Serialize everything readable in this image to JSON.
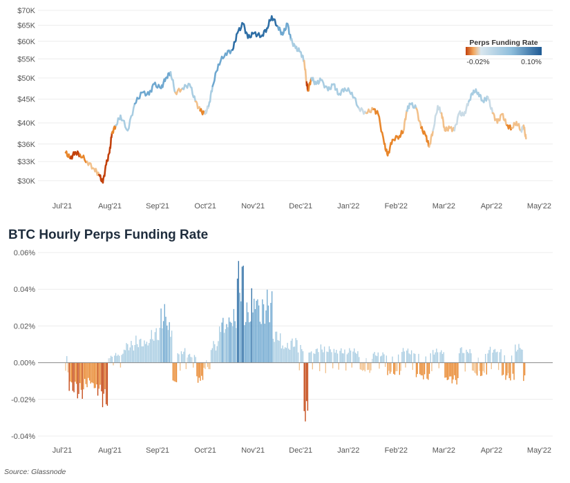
{
  "colors": {
    "neg_strong": "#c2410c",
    "neg_mid": "#e8862b",
    "neg_light": "#f2c08a",
    "neutral": "#c9dbe6",
    "pos_light": "#a9cde2",
    "pos_mid": "#6fa8d0",
    "pos_strong": "#2f6fa6",
    "grid": "#ececec",
    "zero_line": "#8a8a8a"
  },
  "source": "Source: Glassnode",
  "chart_data": [
    {
      "type": "line",
      "title": "",
      "xlabel": "",
      "ylabel": "",
      "y_scale": "log",
      "grid": true,
      "legend_placement": "top-right",
      "legend": {
        "title": "Perps Funding Rate",
        "min_label": "-0.02%",
        "max_label": "0.10%"
      },
      "x_ticks": [
        "Jul'21",
        "Aug'21",
        "Sep'21",
        "Oct'21",
        "Nov'21",
        "Dec'21",
        "Jan'22",
        "Feb'22",
        "Mar'22",
        "Apr'22",
        "May'22"
      ],
      "y_ticks": [
        "$30K",
        "$33K",
        "$36K",
        "$40K",
        "$45K",
        "$50K",
        "$55K",
        "$60K",
        "$65K",
        "$70K"
      ],
      "y_tick_values": [
        30000,
        33000,
        36000,
        40000,
        45000,
        50000,
        55000,
        60000,
        65000,
        70000
      ],
      "ylim": [
        28000,
        70000
      ],
      "xlim": [
        0,
        10.5
      ],
      "series": [
        {
          "color_by": "funding_rate",
          "points": [
            {
              "x": 0.0,
              "y": 34500,
              "rate": -0.005
            },
            {
              "x": 0.1,
              "y": 33500,
              "rate": -0.015
            },
            {
              "x": 0.2,
              "y": 34600,
              "rate": -0.018
            },
            {
              "x": 0.3,
              "y": 34200,
              "rate": -0.012
            },
            {
              "x": 0.45,
              "y": 33000,
              "rate": -0.008
            },
            {
              "x": 0.6,
              "y": 31800,
              "rate": 0.003
            },
            {
              "x": 0.7,
              "y": 30900,
              "rate": -0.01
            },
            {
              "x": 0.78,
              "y": 29700,
              "rate": -0.02
            },
            {
              "x": 0.85,
              "y": 32500,
              "rate": -0.012
            },
            {
              "x": 0.92,
              "y": 34500,
              "rate": -0.02
            },
            {
              "x": 0.97,
              "y": 38000,
              "rate": -0.02
            },
            {
              "x": 1.05,
              "y": 39500,
              "rate": 0.005
            },
            {
              "x": 1.15,
              "y": 41500,
              "rate": 0.01
            },
            {
              "x": 1.3,
              "y": 38500,
              "rate": 0.015
            },
            {
              "x": 1.45,
              "y": 44000,
              "rate": 0.02
            },
            {
              "x": 1.6,
              "y": 46500,
              "rate": 0.02
            },
            {
              "x": 1.75,
              "y": 46000,
              "rate": 0.025
            },
            {
              "x": 1.85,
              "y": 48500,
              "rate": 0.028
            },
            {
              "x": 2.0,
              "y": 47500,
              "rate": 0.03
            },
            {
              "x": 2.1,
              "y": 50000,
              "rate": 0.035
            },
            {
              "x": 2.2,
              "y": 51500,
              "rate": 0.04
            },
            {
              "x": 2.3,
              "y": 46500,
              "rate": -0.008
            },
            {
              "x": 2.45,
              "y": 47500,
              "rate": 0.005
            },
            {
              "x": 2.6,
              "y": 48500,
              "rate": 0.01
            },
            {
              "x": 2.72,
              "y": 44500,
              "rate": 0.005
            },
            {
              "x": 2.82,
              "y": 42500,
              "rate": -0.012
            },
            {
              "x": 2.92,
              "y": 41800,
              "rate": -0.004
            },
            {
              "x": 3.0,
              "y": 43500,
              "rate": 0.005
            },
            {
              "x": 3.08,
              "y": 48000,
              "rate": 0.02
            },
            {
              "x": 3.2,
              "y": 53500,
              "rate": 0.03
            },
            {
              "x": 3.35,
              "y": 56500,
              "rate": 0.035
            },
            {
              "x": 3.5,
              "y": 57500,
              "rate": 0.04
            },
            {
              "x": 3.6,
              "y": 62500,
              "rate": 0.05
            },
            {
              "x": 3.72,
              "y": 65500,
              "rate": 0.055
            },
            {
              "x": 3.82,
              "y": 61000,
              "rate": 0.04
            },
            {
              "x": 3.95,
              "y": 62500,
              "rate": 0.045
            },
            {
              "x": 4.1,
              "y": 61500,
              "rate": 0.04
            },
            {
              "x": 4.22,
              "y": 64000,
              "rate": 0.045
            },
            {
              "x": 4.32,
              "y": 68000,
              "rate": 0.05
            },
            {
              "x": 4.45,
              "y": 64500,
              "rate": 0.035
            },
            {
              "x": 4.55,
              "y": 62000,
              "rate": 0.025
            },
            {
              "x": 4.65,
              "y": 65500,
              "rate": 0.03
            },
            {
              "x": 4.72,
              "y": 60500,
              "rate": 0.015
            },
            {
              "x": 4.82,
              "y": 58000,
              "rate": 0.01
            },
            {
              "x": 4.92,
              "y": 57000,
              "rate": 0.005
            },
            {
              "x": 5.0,
              "y": 54500,
              "rate": 0.01
            },
            {
              "x": 5.05,
              "y": 49000,
              "rate": -0.02
            },
            {
              "x": 5.08,
              "y": 47000,
              "rate": -0.02
            },
            {
              "x": 5.15,
              "y": 50000,
              "rate": 0.005
            },
            {
              "x": 5.25,
              "y": 48500,
              "rate": 0.008
            },
            {
              "x": 5.35,
              "y": 49500,
              "rate": 0.006
            },
            {
              "x": 5.5,
              "y": 47000,
              "rate": 0.008
            },
            {
              "x": 5.62,
              "y": 48500,
              "rate": 0.01
            },
            {
              "x": 5.72,
              "y": 46000,
              "rate": 0.008
            },
            {
              "x": 5.85,
              "y": 47500,
              "rate": 0.006
            },
            {
              "x": 6.0,
              "y": 46500,
              "rate": 0.005
            },
            {
              "x": 6.15,
              "y": 43000,
              "rate": 0.005
            },
            {
              "x": 6.3,
              "y": 42000,
              "rate": -0.003
            },
            {
              "x": 6.45,
              "y": 42800,
              "rate": -0.006
            },
            {
              "x": 6.55,
              "y": 41800,
              "rate": -0.01
            },
            {
              "x": 6.68,
              "y": 36000,
              "rate": -0.008
            },
            {
              "x": 6.75,
              "y": 34000,
              "rate": -0.004
            },
            {
              "x": 6.85,
              "y": 36800,
              "rate": -0.008
            },
            {
              "x": 7.0,
              "y": 37500,
              "rate": -0.006
            },
            {
              "x": 7.08,
              "y": 38500,
              "rate": -0.01
            },
            {
              "x": 7.15,
              "y": 42500,
              "rate": 0.004
            },
            {
              "x": 7.22,
              "y": 44000,
              "rate": 0.005
            },
            {
              "x": 7.35,
              "y": 43000,
              "rate": 0.003
            },
            {
              "x": 7.45,
              "y": 39000,
              "rate": -0.008
            },
            {
              "x": 7.55,
              "y": 37500,
              "rate": -0.01
            },
            {
              "x": 7.62,
              "y": 35500,
              "rate": -0.006
            },
            {
              "x": 7.7,
              "y": 38500,
              "rate": -0.004
            },
            {
              "x": 7.8,
              "y": 43500,
              "rate": 0.003
            },
            {
              "x": 7.88,
              "y": 42000,
              "rate": -0.002
            },
            {
              "x": 7.95,
              "y": 38500,
              "rate": -0.006
            },
            {
              "x": 8.05,
              "y": 39000,
              "rate": -0.004
            },
            {
              "x": 8.15,
              "y": 38500,
              "rate": -0.006
            },
            {
              "x": 8.25,
              "y": 42000,
              "rate": 0.004
            },
            {
              "x": 8.35,
              "y": 41500,
              "rate": -0.003
            },
            {
              "x": 8.45,
              "y": 44500,
              "rate": 0.005
            },
            {
              "x": 8.55,
              "y": 47000,
              "rate": 0.008
            },
            {
              "x": 8.65,
              "y": 46500,
              "rate": 0.006
            },
            {
              "x": 8.75,
              "y": 44500,
              "rate": 0.004
            },
            {
              "x": 8.85,
              "y": 45500,
              "rate": 0.004
            },
            {
              "x": 8.95,
              "y": 42000,
              "rate": -0.003
            },
            {
              "x": 9.05,
              "y": 40000,
              "rate": -0.004
            },
            {
              "x": 9.15,
              "y": 41800,
              "rate": -0.003
            },
            {
              "x": 9.25,
              "y": 39500,
              "rate": -0.008
            },
            {
              "x": 9.35,
              "y": 39000,
              "rate": -0.006
            },
            {
              "x": 9.45,
              "y": 40200,
              "rate": -0.004
            },
            {
              "x": 9.55,
              "y": 38500,
              "rate": -0.006
            },
            {
              "x": 9.6,
              "y": 39500,
              "rate": 0.005
            },
            {
              "x": 9.65,
              "y": 37000,
              "rate": -0.01
            }
          ]
        }
      ]
    },
    {
      "type": "bar",
      "title": "BTC Hourly Perps Funding Rate",
      "xlabel": "",
      "ylabel": "",
      "grid": true,
      "x_ticks": [
        "Jul'21",
        "Aug'21",
        "Sep'21",
        "Oct'21",
        "Nov'21",
        "Dec'21",
        "Jan'22",
        "Feb'22",
        "Mar'22",
        "Apr'22",
        "May'22"
      ],
      "y_ticks": [
        "-0.04%",
        "-0.02%",
        "0.00%",
        "0.02%",
        "0.04%",
        "0.06%"
      ],
      "y_tick_values": [
        -0.04,
        -0.02,
        0.0,
        0.02,
        0.04,
        0.06
      ],
      "ylim": [
        -0.04,
        0.06
      ],
      "xlim": [
        0,
        10.5
      ],
      "unit": "%",
      "series": [
        {
          "name": "",
          "profile": [
            {
              "x": 0.0,
              "rate": -0.008
            },
            {
              "x": 0.15,
              "rate": -0.018
            },
            {
              "x": 0.3,
              "rate": -0.02
            },
            {
              "x": 0.5,
              "rate": -0.015
            },
            {
              "x": 0.7,
              "rate": -0.02
            },
            {
              "x": 0.85,
              "rate": -0.025
            },
            {
              "x": 0.95,
              "rate": 0.004
            },
            {
              "x": 1.1,
              "rate": 0.006
            },
            {
              "x": 1.3,
              "rate": 0.012
            },
            {
              "x": 1.6,
              "rate": 0.015
            },
            {
              "x": 1.9,
              "rate": 0.02
            },
            {
              "x": 2.05,
              "rate": 0.033
            },
            {
              "x": 2.2,
              "rate": 0.025
            },
            {
              "x": 2.28,
              "rate": -0.014
            },
            {
              "x": 2.4,
              "rate": 0.008
            },
            {
              "x": 2.65,
              "rate": 0.005
            },
            {
              "x": 2.8,
              "rate": -0.013
            },
            {
              "x": 2.95,
              "rate": -0.004
            },
            {
              "x": 3.1,
              "rate": 0.012
            },
            {
              "x": 3.3,
              "rate": 0.028
            },
            {
              "x": 3.5,
              "rate": 0.032
            },
            {
              "x": 3.65,
              "rate": 0.057
            },
            {
              "x": 3.8,
              "rate": 0.035
            },
            {
              "x": 3.95,
              "rate": 0.047
            },
            {
              "x": 4.1,
              "rate": 0.038
            },
            {
              "x": 4.25,
              "rate": 0.04
            },
            {
              "x": 4.4,
              "rate": 0.02
            },
            {
              "x": 4.6,
              "rate": 0.012
            },
            {
              "x": 4.8,
              "rate": 0.014
            },
            {
              "x": 4.95,
              "rate": 0.01
            },
            {
              "x": 5.05,
              "rate": -0.037
            },
            {
              "x": 5.15,
              "rate": 0.008
            },
            {
              "x": 5.4,
              "rate": 0.01
            },
            {
              "x": 5.7,
              "rate": 0.009
            },
            {
              "x": 6.0,
              "rate": 0.008
            },
            {
              "x": 6.3,
              "rate": -0.006
            },
            {
              "x": 6.6,
              "rate": 0.006
            },
            {
              "x": 6.9,
              "rate": -0.008
            },
            {
              "x": 7.2,
              "rate": 0.008
            },
            {
              "x": 7.5,
              "rate": -0.01
            },
            {
              "x": 7.8,
              "rate": 0.008
            },
            {
              "x": 8.1,
              "rate": -0.012
            },
            {
              "x": 8.4,
              "rate": 0.009
            },
            {
              "x": 8.7,
              "rate": -0.008
            },
            {
              "x": 9.0,
              "rate": 0.009
            },
            {
              "x": 9.3,
              "rate": -0.01
            },
            {
              "x": 9.55,
              "rate": 0.011
            },
            {
              "x": 9.65,
              "rate": -0.012
            }
          ]
        }
      ]
    }
  ]
}
